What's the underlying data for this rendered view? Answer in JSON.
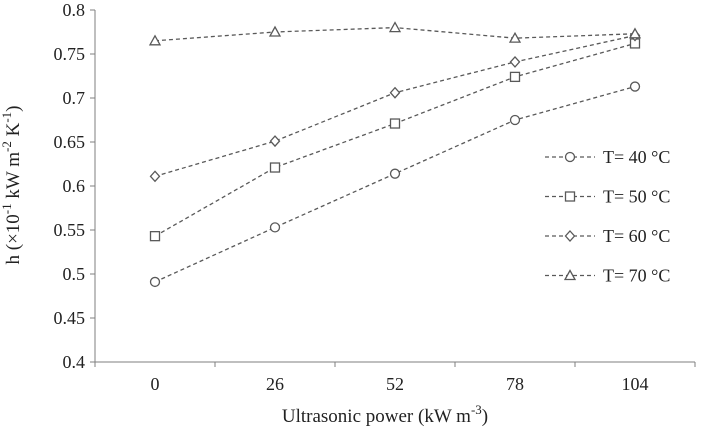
{
  "chart_data": {
    "type": "line",
    "categories": [
      "0",
      "26",
      "52",
      "78",
      "104"
    ],
    "xlabel_main": "Ultrasonic  power (kW m",
    "xlabel_sup": "-3",
    "xlabel_end": ")",
    "ylabel_parts": {
      "a": "h  (×10",
      "b": "-1",
      "c": " kW m",
      "d": "-2",
      "e": " K",
      "f": "-1",
      "g": ")"
    },
    "ylim": [
      0.4,
      0.8
    ],
    "yticks": [
      "0.4",
      "0.45",
      "0.5",
      "0.55",
      "0.6",
      "0.65",
      "0.7",
      "0.75",
      "0.8"
    ],
    "series": [
      {
        "name": "T= 40 °C",
        "marker": "circle",
        "values": [
          0.491,
          0.553,
          0.614,
          0.675,
          0.713
        ]
      },
      {
        "name": "T= 50 °C",
        "marker": "square",
        "values": [
          0.543,
          0.621,
          0.671,
          0.724,
          0.762
        ]
      },
      {
        "name": "T= 60 °C",
        "marker": "diamond",
        "values": [
          0.611,
          0.651,
          0.706,
          0.741,
          0.771
        ]
      },
      {
        "name": "T= 70 °C",
        "marker": "triangle",
        "values": [
          0.765,
          0.775,
          0.78,
          0.768,
          0.773
        ]
      }
    ],
    "legend_position": "right",
    "grid": false,
    "line_color": "#595959"
  }
}
